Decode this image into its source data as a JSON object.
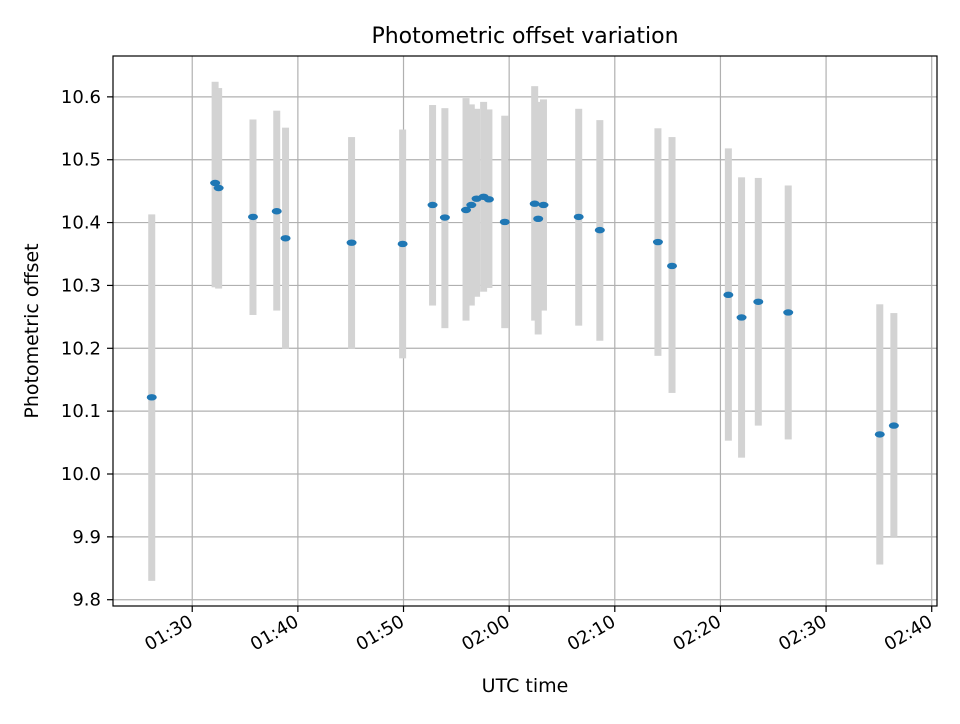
{
  "chart_data": {
    "type": "scatter",
    "title": "Photometric offset variation",
    "xlabel": "UTC time",
    "ylabel": "Photometric offset",
    "xlim": [
      "01:22:30",
      "02:40:30"
    ],
    "ylim": [
      9.79,
      10.665
    ],
    "x_ticks": [
      "01:30",
      "01:40",
      "01:50",
      "02:00",
      "02:10",
      "02:20",
      "02:30",
      "02:40"
    ],
    "y_ticks": [
      "9.8",
      "9.9",
      "10.0",
      "10.1",
      "10.2",
      "10.3",
      "10.4",
      "10.5",
      "10.6"
    ],
    "grid": true,
    "colors": {
      "point": "#1f77b4",
      "errorbar": "#d3d3d3",
      "grid": "#b0b0b0"
    },
    "series": [
      {
        "points": [
          {
            "t": "01:26:10",
            "y": 10.122,
            "lo": 9.83,
            "hi": 10.413
          },
          {
            "t": "01:32:10",
            "y": 10.463,
            "lo": 10.297,
            "hi": 10.624
          },
          {
            "t": "01:32:30",
            "y": 10.455,
            "lo": 10.295,
            "hi": 10.614
          },
          {
            "t": "01:35:45",
            "y": 10.409,
            "lo": 10.253,
            "hi": 10.564
          },
          {
            "t": "01:38:00",
            "y": 10.418,
            "lo": 10.26,
            "hi": 10.578
          },
          {
            "t": "01:38:50",
            "y": 10.375,
            "lo": 10.199,
            "hi": 10.551
          },
          {
            "t": "01:45:05",
            "y": 10.368,
            "lo": 10.199,
            "hi": 10.536
          },
          {
            "t": "01:49:55",
            "y": 10.366,
            "lo": 10.184,
            "hi": 10.548
          },
          {
            "t": "01:52:45",
            "y": 10.428,
            "lo": 10.268,
            "hi": 10.587
          },
          {
            "t": "01:53:55",
            "y": 10.408,
            "lo": 10.232,
            "hi": 10.582
          },
          {
            "t": "01:55:55",
            "y": 10.42,
            "lo": 10.244,
            "hi": 10.598
          },
          {
            "t": "01:56:25",
            "y": 10.428,
            "lo": 10.268,
            "hi": 10.588
          },
          {
            "t": "01:56:55",
            "y": 10.438,
            "lo": 10.282,
            "hi": 10.581
          },
          {
            "t": "01:57:35",
            "y": 10.441,
            "lo": 10.29,
            "hi": 10.592
          },
          {
            "t": "01:58:05",
            "y": 10.437,
            "lo": 10.296,
            "hi": 10.58
          },
          {
            "t": "01:59:35",
            "y": 10.401,
            "lo": 10.232,
            "hi": 10.57
          },
          {
            "t": "02:02:25",
            "y": 10.43,
            "lo": 10.244,
            "hi": 10.617
          },
          {
            "t": "02:02:45",
            "y": 10.406,
            "lo": 10.222,
            "hi": 10.592
          },
          {
            "t": "02:03:15",
            "y": 10.428,
            "lo": 10.26,
            "hi": 10.596
          },
          {
            "t": "02:06:35",
            "y": 10.409,
            "lo": 10.236,
            "hi": 10.581
          },
          {
            "t": "02:08:35",
            "y": 10.388,
            "lo": 10.212,
            "hi": 10.563
          },
          {
            "t": "02:14:05",
            "y": 10.369,
            "lo": 10.188,
            "hi": 10.55
          },
          {
            "t": "02:15:25",
            "y": 10.331,
            "lo": 10.129,
            "hi": 10.536
          },
          {
            "t": "02:20:45",
            "y": 10.285,
            "lo": 10.053,
            "hi": 10.518
          },
          {
            "t": "02:22:00",
            "y": 10.249,
            "lo": 10.026,
            "hi": 10.472
          },
          {
            "t": "02:23:35",
            "y": 10.274,
            "lo": 10.077,
            "hi": 10.471
          },
          {
            "t": "02:26:25",
            "y": 10.257,
            "lo": 10.055,
            "hi": 10.459
          },
          {
            "t": "02:35:05",
            "y": 10.063,
            "lo": 9.856,
            "hi": 10.27
          },
          {
            "t": "02:36:25",
            "y": 10.077,
            "lo": 9.9,
            "hi": 10.256
          }
        ]
      }
    ]
  }
}
